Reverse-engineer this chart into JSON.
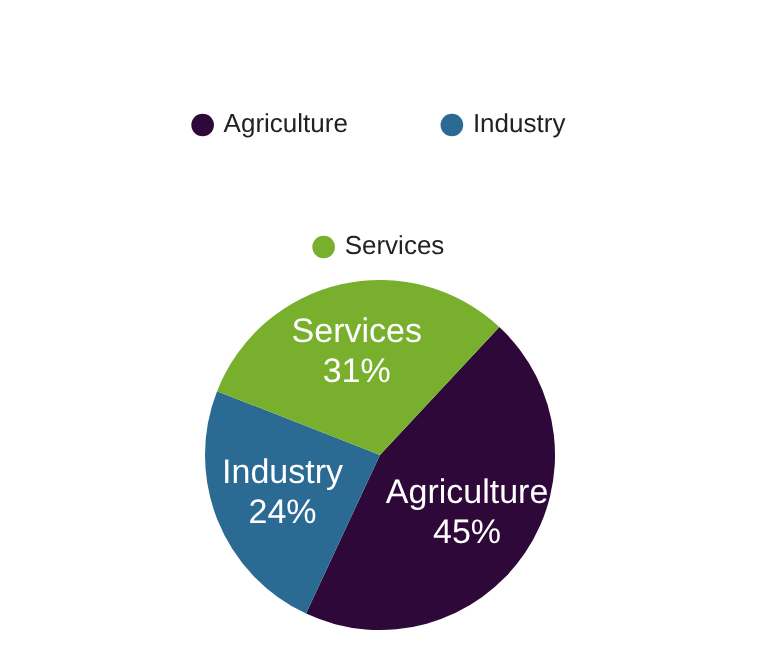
{
  "chart_data": {
    "type": "pie",
    "categories": [
      "Agriculture",
      "Industry",
      "Services"
    ],
    "values": [
      45,
      24,
      31
    ],
    "value_labels": [
      "45%",
      "24%",
      "31%"
    ],
    "colors": [
      "#2e0838",
      "#2b6b93",
      "#78b02e"
    ],
    "legend": "top"
  }
}
